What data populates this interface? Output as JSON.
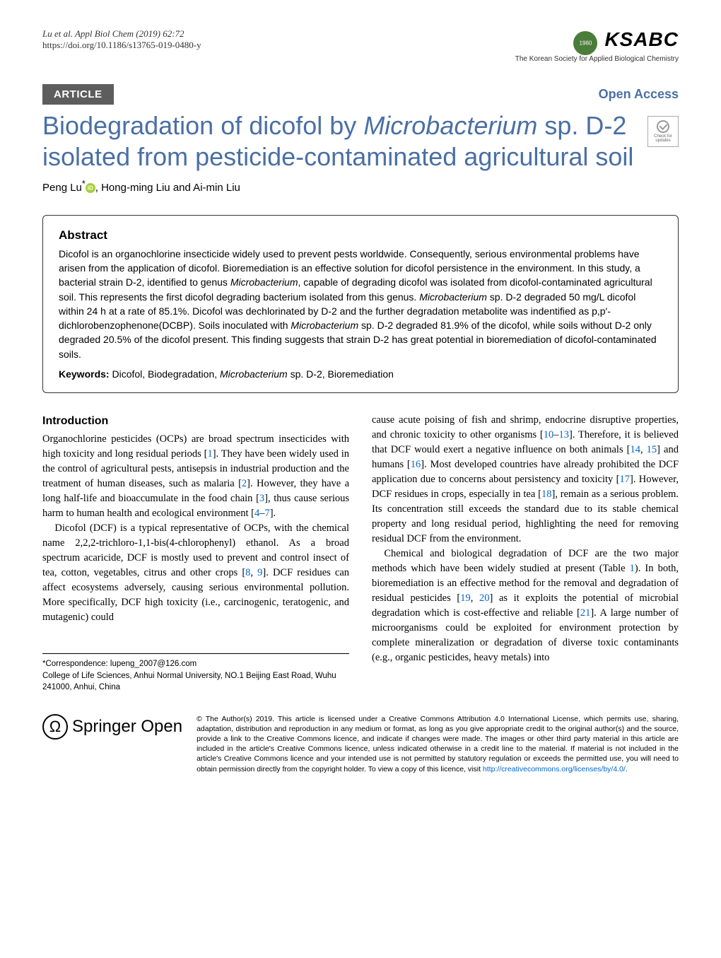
{
  "header": {
    "citation": "Lu et al. Appl Biol Chem    (2019) 62:72",
    "doi": "https://doi.org/10.1186/s13765-019-0480-y",
    "society_name": "KSABC",
    "society_full": "The Korean Society for Applied Biological Chemistry"
  },
  "badges": {
    "article_type": "ARTICLE",
    "open_access": "Open Access",
    "check_updates_line1": "Check for",
    "check_updates_line2": "updates"
  },
  "title_html": "Biodegradation of dicofol by <em>Microbacterium</em> sp. D-2 isolated from pesticide-contaminated agricultural soil",
  "authors_html": "Peng Lu<sup>*</sup><span class=\"orcid\" data-name=\"orcid-icon\" data-interactable=\"false\"></span>, Hong-ming Liu and Ai-min Liu",
  "abstract": {
    "heading": "Abstract",
    "text_html": "Dicofol is an organochlorine insecticide widely used to prevent pests worldwide. Consequently, serious environmental problems have arisen from the application of dicofol. Bioremediation is an effective solution for dicofol persistence in the environment. In this study, a bacterial strain D-2, identified to genus <em>Microbacterium</em>, capable of degrading dicofol was isolated from dicofol-contaminated agricultural soil. This represents the first dicofol degrading bacterium isolated from this genus. <em>Microbacterium</em> sp. D-2 degraded 50 mg/L dicofol within 24 h at a rate of 85.1%. Dicofol was dechlorinated by D-2 and the further degradation metabolite was indentified as p,p′-dichlorobenzophenone(DCBP). Soils inoculated with <em>Microbacterium</em> sp. D-2 degraded 81.9% of the dicofol, while soils without D-2 only degraded 20.5% of the dicofol present. This finding suggests that strain D-2 has great potential in bioremediation of dicofol-contaminated soils.",
    "keywords_label": "Keywords:",
    "keywords_html": "Dicofol, Biodegradation, <em>Microbacterium</em> sp. D-2, Bioremediation"
  },
  "introduction": {
    "heading": "Introduction",
    "col1_p1_html": "Organochlorine pesticides (OCPs) are broad spectrum insecticides with high toxicity and long residual periods [<span class=\"ref\">1</span>]. They have been widely used in the control of agricultural pests, antisepsis in industrial production and the treatment of human diseases, such as malaria [<span class=\"ref\">2</span>]. However, they have a long half-life and bioaccumulate in the food chain [<span class=\"ref\">3</span>], thus cause serious harm to human health and ecological environment [<span class=\"ref\">4</span>–<span class=\"ref\">7</span>].",
    "col1_p2_html": "Dicofol (DCF) is a typical representative of OCPs, with the chemical name 2,2,2-trichloro-1,1-bis(4-chlorophenyl) ethanol. As a broad spectrum acaricide, DCF is mostly used to prevent and control insect of tea, cotton, vegetables, citrus and other crops [<span class=\"ref\">8</span>, <span class=\"ref\">9</span>]. DCF residues can affect ecosystems adversely, causing serious environmental pollution. More specifically, DCF high toxicity (i.e., carcinogenic, teratogenic, and mutagenic) could",
    "col2_p1_html": "cause acute poising of fish and shrimp, endocrine disruptive properties, and chronic toxicity to other organisms [<span class=\"ref\">10</span>–<span class=\"ref\">13</span>]. Therefore, it is believed that DCF would exert a negative influence on both animals [<span class=\"ref\">14</span>, <span class=\"ref\">15</span>] and humans [<span class=\"ref\">16</span>]. Most developed countries have already prohibited the DCF application due to concerns about persistency and toxicity [<span class=\"ref\">17</span>]. However, DCF residues in crops, especially in tea [<span class=\"ref\">18</span>], remain as a serious problem. Its concentration still exceeds the standard due to its stable chemical property and long residual period, highlighting the need for removing residual DCF from the environment.",
    "col2_p2_html": "Chemical and biological degradation of DCF are the two major methods which have been widely studied at present (Table <span class=\"ref\">1</span>). In both, bioremediation is an effective method for the removal and degradation of residual pesticides [<span class=\"ref\">19</span>, <span class=\"ref\">20</span>] as it exploits the potential of microbial degradation which is cost-effective and reliable [<span class=\"ref\">21</span>]. A large number of microorganisms could be exploited for environment protection by complete mineralization or degradation of diverse toxic contaminants (e.g., organic pesticides, heavy metals) into"
  },
  "correspondence": {
    "line1": "*Correspondence:  lupeng_2007@126.com",
    "line2": "College of Life Sciences, Anhui Normal University, NO.1 Beijing East Road, Wuhu 241000, Anhui, China"
  },
  "footer": {
    "publisher": "Springer Open",
    "license_html": "© The Author(s) 2019. This article is licensed under a Creative Commons Attribution 4.0 International License, which permits use, sharing, adaptation, distribution and reproduction in any medium or format, as long as you give appropriate credit to the original author(s) and the source, provide a link to the Creative Commons licence, and indicate if changes were made. The images or other third party material in this article are included in the article's Creative Commons licence, unless indicated otherwise in a credit line to the material. If material is not included in the article's Creative Commons licence and your intended use is not permitted by statutory regulation or exceeds the permitted use, you will need to obtain permission directly from the copyright holder. To view a copy of this licence, visit <span class=\"link\">http://creativecommons.org/licenses/by/4.0/</span>."
  },
  "colors": {
    "accent_blue": "#4a6fa5",
    "link_blue": "#0066cc",
    "badge_gray": "#5d5d5d",
    "orcid_green": "#a6ce39",
    "ksabc_green": "#4a7c3a"
  }
}
